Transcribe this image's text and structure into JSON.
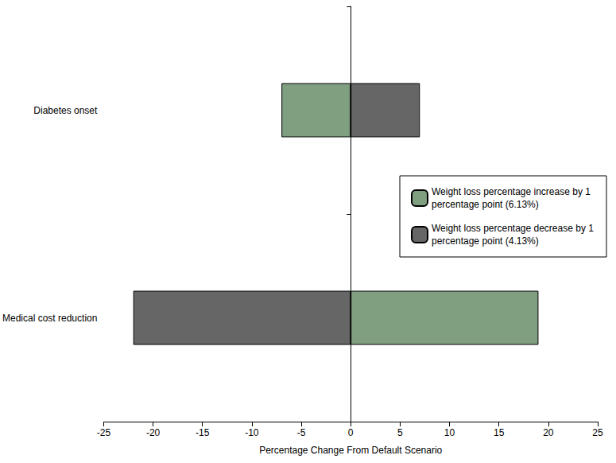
{
  "chart_data": {
    "type": "bar",
    "orientation": "horizontal",
    "categories": [
      "Diabetes onset",
      "Medical cost reduction"
    ],
    "series": [
      {
        "name": "Weight loss percentage increase by 1 percentage point (6.13%)",
        "color": "#7f9f80",
        "values": [
          -7,
          19
        ]
      },
      {
        "name": "Weight loss percentage decrease by 1 percentage point (4.13%)",
        "color": "#666666",
        "values": [
          7,
          -22
        ]
      }
    ],
    "xlabel": "Percentage Change From Default Scenario",
    "xlim": [
      -25,
      25
    ],
    "xticks": [
      -25,
      -20,
      -15,
      -10,
      -5,
      0,
      5,
      10,
      15,
      20,
      25
    ],
    "grid": false,
    "legend": "right"
  }
}
